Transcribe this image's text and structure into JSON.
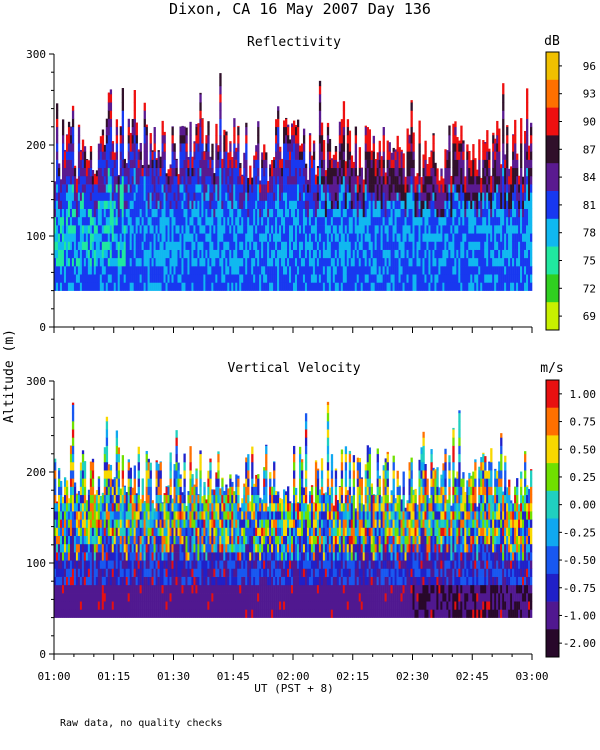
{
  "title": "Dixon, CA 16 May 2007  Day 136",
  "ylabel": "Altitude (m)",
  "xlabel": "UT  (PST + 8)",
  "footnote": "Raw data, no quality checks",
  "x_ticks": [
    "01:00",
    "01:15",
    "01:30",
    "01:45",
    "02:00",
    "02:15",
    "02:30",
    "02:45",
    "03:00"
  ],
  "y_ticks": [
    "0",
    "100",
    "200",
    "300"
  ],
  "chart_data": [
    {
      "type": "heatmap",
      "title": "Reflectivity",
      "x_range": [
        "01:00",
        "03:00"
      ],
      "ylim": [
        0,
        300
      ],
      "data_altitude_range_m": [
        40,
        280
      ],
      "colorbar": {
        "unit": "dB",
        "ticks": [
          "96",
          "93",
          "90",
          "87",
          "84",
          "81",
          "78",
          "75",
          "72",
          "69"
        ],
        "colors": [
          "#f0c000",
          "#ff7000",
          "#ee1010",
          "#30102a",
          "#5a1a90",
          "#1838f0",
          "#10b8f0",
          "#20e8a0",
          "#30d020",
          "#c8f000"
        ]
      }
    },
    {
      "type": "heatmap",
      "title": "Vertical Velocity",
      "x_range": [
        "01:00",
        "03:00"
      ],
      "ylim": [
        0,
        300
      ],
      "data_altitude_range_m": [
        40,
        280
      ],
      "colorbar": {
        "unit": "m/s",
        "ticks": [
          "1.00",
          "0.75",
          "0.50",
          "0.25",
          "0.00",
          "-0.25",
          "-0.50",
          "-0.75",
          "-1.00",
          "-2.00"
        ],
        "colors": [
          "#e81010",
          "#ff7000",
          "#f8d800",
          "#70e000",
          "#20d0c0",
          "#10a8f0",
          "#1858f0",
          "#2020c8",
          "#501890",
          "#28082a"
        ]
      }
    }
  ]
}
